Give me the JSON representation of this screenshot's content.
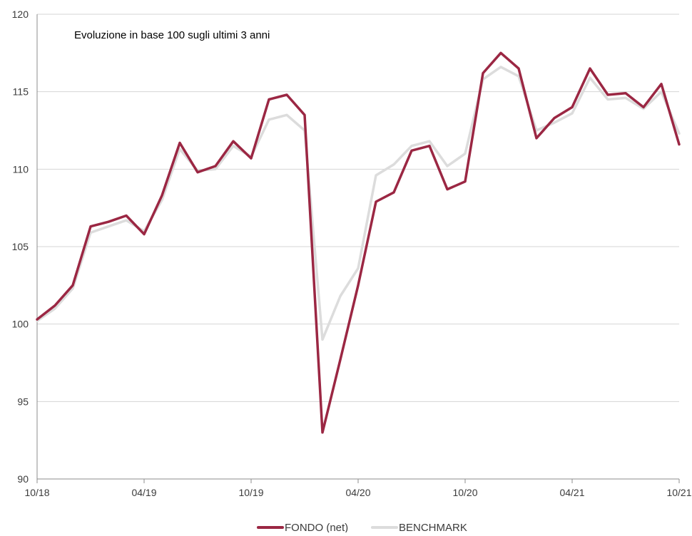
{
  "chart_data": {
    "type": "line",
    "title": "Evoluzione in base 100 sugli ultimi 3 anni",
    "xlabel": "",
    "ylabel": "",
    "ylim": [
      90,
      120
    ],
    "yticks": [
      90,
      95,
      100,
      105,
      110,
      115,
      120
    ],
    "xticks": [
      "10/18",
      "04/19",
      "10/19",
      "04/20",
      "10/20",
      "04/21",
      "10/21"
    ],
    "x_range": [
      "10/18",
      "10/21"
    ],
    "grid": "horizontal",
    "legend_position": "bottom",
    "x": [
      "10/18",
      "11/18",
      "12/18",
      "01/19",
      "02/19",
      "03/19",
      "04/19",
      "05/19",
      "06/19",
      "07/19",
      "08/19",
      "09/19",
      "10/19",
      "11/19",
      "12/19",
      "01/20",
      "02/20",
      "03/20",
      "04/20",
      "05/20",
      "06/20",
      "07/20",
      "08/20",
      "09/20",
      "10/20",
      "11/20",
      "12/20",
      "01/21",
      "02/21",
      "03/21",
      "04/21",
      "05/21",
      "06/21",
      "07/21",
      "08/21",
      "09/21",
      "10/21"
    ],
    "series": [
      {
        "name": "FONDO (net)",
        "color": "#9b2743",
        "values": [
          100.3,
          101.2,
          102.5,
          106.3,
          106.6,
          107.0,
          105.8,
          108.3,
          111.7,
          109.8,
          110.2,
          111.8,
          110.7,
          114.5,
          114.8,
          113.5,
          93.0,
          97.7,
          102.5,
          107.9,
          108.5,
          111.2,
          111.5,
          108.7,
          109.2,
          116.2,
          117.5,
          116.5,
          112.0,
          113.3,
          114.0,
          116.5,
          114.8,
          114.9,
          114.0,
          115.5,
          111.6
        ]
      },
      {
        "name": "BENCHMARK",
        "color": "#dcdcdc",
        "values": [
          100.2,
          101.0,
          102.3,
          105.9,
          106.3,
          106.7,
          106.0,
          108.0,
          111.3,
          109.9,
          110.0,
          111.5,
          110.8,
          113.2,
          113.5,
          112.5,
          99.0,
          101.8,
          103.6,
          109.6,
          110.3,
          111.5,
          111.8,
          110.2,
          111.0,
          115.8,
          116.6,
          116.0,
          112.5,
          113.0,
          113.6,
          115.9,
          114.5,
          114.6,
          113.9,
          115.0,
          112.3
        ]
      }
    ]
  }
}
